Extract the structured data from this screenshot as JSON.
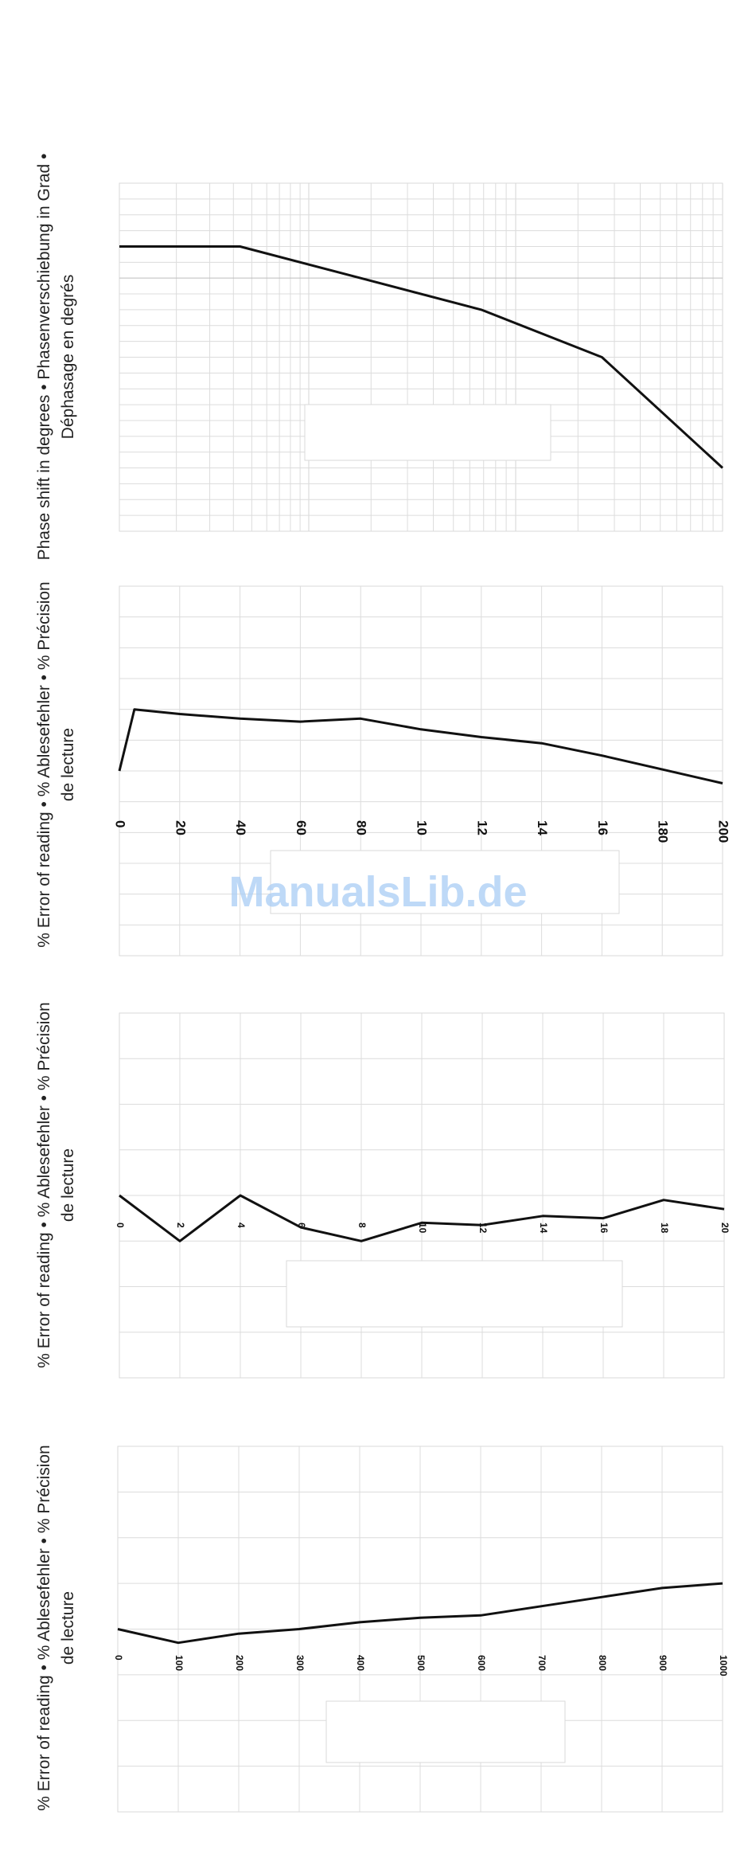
{
  "watermark": "ManualsLib.de",
  "chart_data": [
    {
      "type": "line",
      "ylabel": [
        "Phase shift in degrees • Phasenverschiebung in Grad •",
        "Déphasage en degrés"
      ],
      "x": [
        0,
        1,
        2,
        3,
        4,
        5
      ],
      "values": [
        0,
        0,
        -1,
        -2,
        -3.5,
        -7
      ],
      "ylim": [
        -9,
        2
      ],
      "grid": true,
      "tick_labels": []
    },
    {
      "type": "line",
      "ylabel": [
        "% Error of reading • % Ablesefehler • % Précision",
        "de lecture"
      ],
      "x": [
        0,
        5,
        20,
        40,
        60,
        80,
        100,
        120,
        140,
        160,
        180,
        200
      ],
      "values": [
        1.0,
        3.0,
        2.85,
        2.7,
        2.6,
        2.7,
        2.35,
        2.1,
        1.9,
        1.5,
        1.05,
        0.6
      ],
      "ylim": [
        -5,
        7
      ],
      "grid": true,
      "tick_labels": [
        "0",
        "20",
        "40",
        "60",
        "80",
        "10",
        "12",
        "14",
        "16",
        "180",
        "200"
      ]
    },
    {
      "type": "line",
      "ylabel": [
        "% Error of reading • % Ablesefehler • % Précision",
        "de lecture"
      ],
      "x": [
        0,
        2,
        4,
        6,
        8,
        10,
        12,
        14,
        16,
        18,
        20
      ],
      "values": [
        1.0,
        0.0,
        1.0,
        0.3,
        0.0,
        0.4,
        0.35,
        0.55,
        0.5,
        0.9,
        0.7
      ],
      "ylim": [
        -3,
        5
      ],
      "grid": true,
      "tick_labels": [
        "0",
        "2",
        "4",
        "6",
        "8",
        "10",
        "12",
        "14",
        "16",
        "18",
        "20"
      ]
    },
    {
      "type": "line",
      "ylabel": [
        "% Error of reading • % Ablesefehler • % Précision",
        "de lecture"
      ],
      "x": [
        0,
        100,
        200,
        300,
        400,
        500,
        600,
        700,
        800,
        900,
        1000
      ],
      "values": [
        0.0,
        -0.3,
        -0.1,
        0.0,
        0.15,
        0.25,
        0.3,
        0.5,
        0.7,
        0.9,
        1.0
      ],
      "ylim": [
        -4,
        4
      ],
      "grid": true,
      "tick_labels": [
        "0",
        "100",
        "200",
        "300",
        "400",
        "500",
        "600",
        "700",
        "800",
        "900",
        "1000"
      ]
    }
  ]
}
